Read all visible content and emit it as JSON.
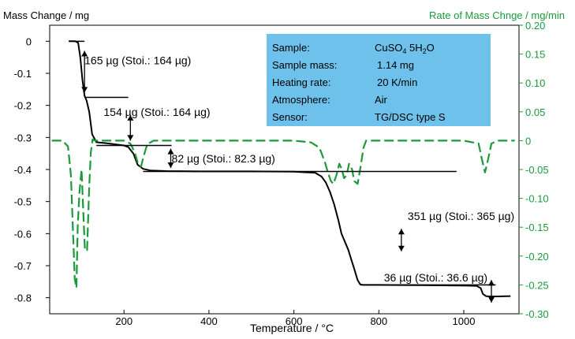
{
  "chart_data": {
    "type": "line",
    "left_axis": {
      "title": "Mass Change / mg",
      "min": -0.85,
      "max": 0.05,
      "ticks": [
        0,
        -0.1,
        -0.2,
        -0.3,
        -0.4,
        -0.5,
        -0.6,
        -0.7,
        -0.8
      ],
      "tick_labels": [
        "0",
        "-0.1",
        "-0.2",
        "-0.3",
        "-0.4",
        "-0.5",
        "-0.6",
        "-0.7",
        "-0.8"
      ],
      "color": "#000000"
    },
    "right_axis": {
      "title": "Rate of Mass Chnge / mg/min",
      "min": -0.3,
      "max": 0.2,
      "ticks": [
        0.2,
        0.15,
        0.1,
        0.05,
        0,
        -0.05,
        -0.1,
        -0.15,
        -0.2,
        -0.25,
        -0.3
      ],
      "tick_labels": [
        "0.20",
        "0.15",
        "0.10",
        "0.05",
        "0",
        "-0.05",
        "-0.10",
        "-0.15",
        "-0.20",
        "-0.25",
        "-0.30"
      ],
      "color": "#1a9a3a"
    },
    "x_axis": {
      "title": "Temperature / °C",
      "min": 25,
      "max": 1130,
      "ticks": [
        200,
        400,
        600,
        800,
        1000
      ],
      "tick_labels": [
        "200",
        "400",
        "600",
        "800",
        "1000"
      ]
    },
    "series": [
      {
        "axis": "left",
        "color": "#000000",
        "style": "solid",
        "x": [
          70,
          85,
          92,
          97,
          102,
          107,
          112,
          118,
          125,
          135,
          160,
          200,
          210,
          222,
          232,
          245,
          262,
          300,
          400,
          500,
          600,
          650,
          665,
          675,
          685,
          695,
          705,
          712,
          720,
          728,
          735,
          742,
          750,
          756,
          762,
          800,
          900,
          1000,
          1030,
          1040,
          1045,
          1052,
          1060,
          1080,
          1110
        ],
        "values": [
          0,
          0,
          -0.005,
          -0.05,
          -0.12,
          -0.17,
          -0.185,
          -0.22,
          -0.29,
          -0.315,
          -0.318,
          -0.325,
          -0.33,
          -0.35,
          -0.385,
          -0.398,
          -0.403,
          -0.405,
          -0.406,
          -0.406,
          -0.407,
          -0.41,
          -0.422,
          -0.44,
          -0.47,
          -0.51,
          -0.56,
          -0.6,
          -0.625,
          -0.65,
          -0.68,
          -0.71,
          -0.745,
          -0.758,
          -0.76,
          -0.76,
          -0.761,
          -0.762,
          -0.763,
          -0.77,
          -0.788,
          -0.795,
          -0.796,
          -0.796,
          -0.795
        ]
      },
      {
        "axis": "right",
        "color": "#1a9a3a",
        "style": "dashed",
        "x": [
          30,
          55,
          68,
          75,
          80,
          84,
          88,
          91,
          95,
          100,
          104,
          108,
          113,
          118,
          122,
          126,
          132,
          145,
          170,
          200,
          215,
          225,
          233,
          240,
          247,
          255,
          270,
          300,
          400,
          500,
          600,
          640,
          660,
          672,
          680,
          687,
          693,
          700,
          707,
          713,
          718,
          724,
          730,
          737,
          742,
          750,
          757,
          764,
          770,
          780,
          800,
          900,
          1000,
          1035,
          1042,
          1050,
          1058,
          1065,
          1080,
          1120
        ],
        "values": [
          0,
          0,
          -0.01,
          -0.06,
          -0.16,
          -0.24,
          -0.255,
          -0.15,
          -0.09,
          -0.05,
          -0.12,
          -0.19,
          -0.19,
          -0.08,
          -0.02,
          0.002,
          0,
          0,
          0,
          0,
          -0.005,
          -0.02,
          -0.04,
          -0.045,
          -0.025,
          -0.006,
          0,
          0,
          0,
          0,
          0,
          -0.003,
          -0.012,
          -0.035,
          -0.055,
          -0.07,
          -0.075,
          -0.06,
          -0.04,
          -0.05,
          -0.065,
          -0.06,
          -0.04,
          -0.05,
          -0.07,
          -0.075,
          -0.045,
          -0.012,
          0,
          0,
          0,
          0,
          0,
          -0.005,
          -0.03,
          -0.055,
          -0.03,
          -0.005,
          0,
          0
        ]
      }
    ],
    "annotations": [
      {
        "text": "165 µg (Stoi.: 164 µg)",
        "x": 107,
        "y": -0.06
      },
      {
        "text": "154 µg (Stoi.: 164 µg)",
        "x": 152,
        "y": -0.22
      },
      {
        "text": "82 µg (Stoi.: 82.3 µg)",
        "x": 312,
        "y": -0.365
      },
      {
        "text": "351 µg (Stoi.: 365 µg)",
        "x": 868,
        "y": -0.545
      },
      {
        "text": "36 µg (Stoi.: 36.6 µg)",
        "x": 812,
        "y": -0.737
      }
    ],
    "info_box": {
      "rows": [
        {
          "label": "Sample:",
          "value": "CuSO",
          "sub1": "4",
          "mid": " 5H",
          "sub2": "2",
          "end": "O"
        },
        {
          "label": "Sample mass:",
          "value": "1.14 mg"
        },
        {
          "label": "Heating rate:",
          "value": "20 K/min"
        },
        {
          "label": "Atmosphere:",
          "value": "Air"
        },
        {
          "label": "Sensor:",
          "value": "TG/DSC type S"
        }
      ],
      "background": "#6ec1ea"
    }
  }
}
